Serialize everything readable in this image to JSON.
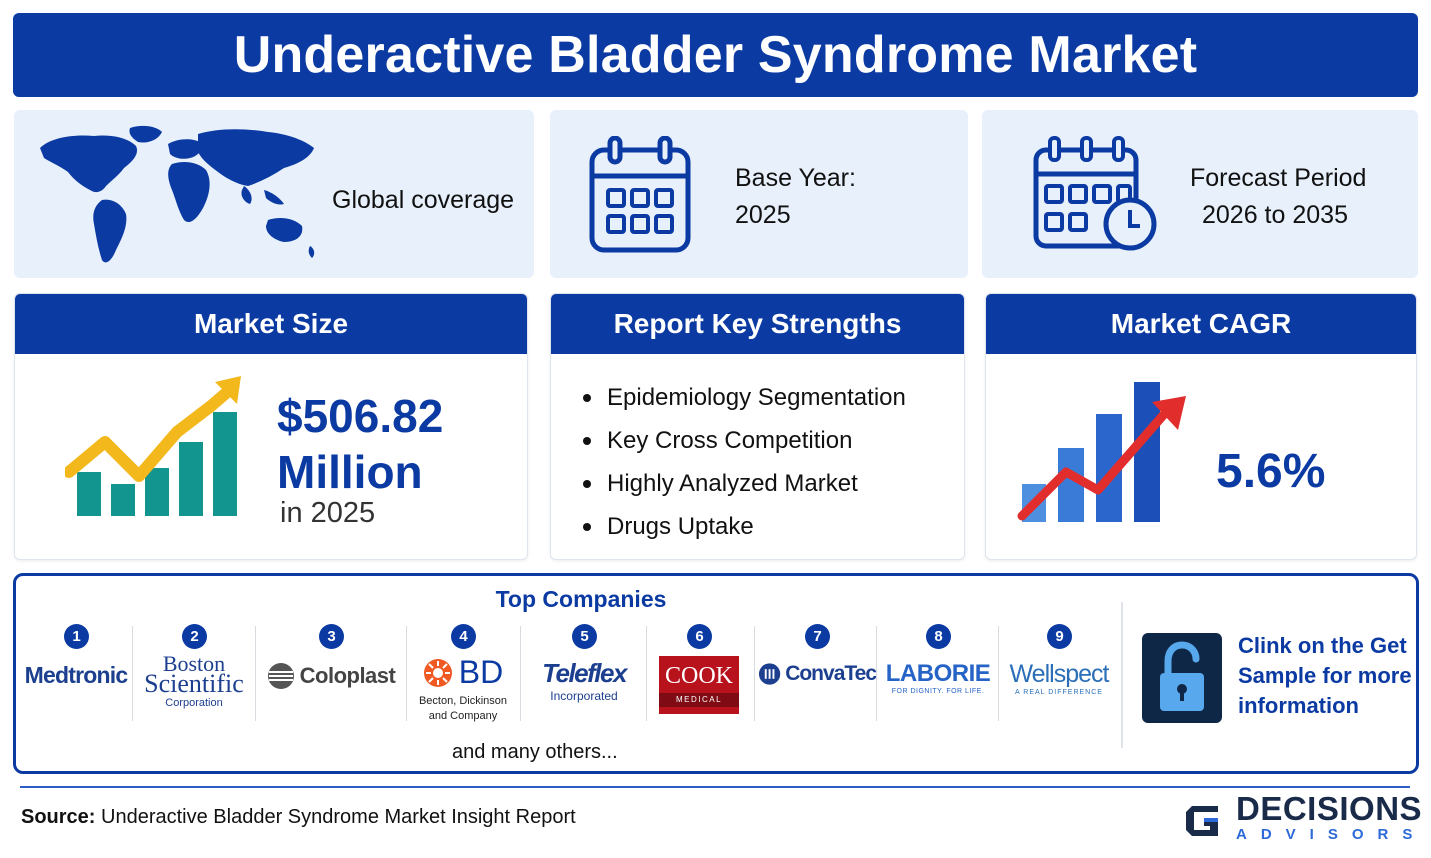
{
  "title": "Underactive Bladder Syndrome Market",
  "coverage": {
    "label": "Global coverage"
  },
  "base_year": {
    "label": "Base Year:",
    "value": "2025"
  },
  "forecast": {
    "label": "Forecast Period",
    "value": "2026 to 2035"
  },
  "market_size": {
    "heading": "Market Size",
    "value_line1": "$506.82",
    "value_line2": "Million",
    "sub": "in 2025"
  },
  "strengths": {
    "heading": "Report Key Strengths",
    "items": [
      "Epidemiology Segmentation",
      "Key Cross Competition",
      "Highly Analyzed Market",
      "Drugs Uptake"
    ]
  },
  "cagr": {
    "heading": "Market CAGR",
    "value": "5.6%"
  },
  "companies": {
    "heading": "Top Companies",
    "list": [
      {
        "num": "1",
        "name": "Medtronic"
      },
      {
        "num": "2",
        "name": "Boston",
        "name2": "Scientific",
        "sub": "Corporation"
      },
      {
        "num": "3",
        "name": "Coloplast"
      },
      {
        "num": "4",
        "name": "BD",
        "sub": "Becton, Dickinson",
        "sub2": "and Company"
      },
      {
        "num": "5",
        "name": "Teleflex",
        "sub": "Incorporated"
      },
      {
        "num": "6",
        "name": "COOK",
        "sub": "MEDICAL"
      },
      {
        "num": "7",
        "name": "ConvaTec"
      },
      {
        "num": "8",
        "name": "LABORIE",
        "sub": "FOR DIGNITY. FOR LIFE."
      },
      {
        "num": "9",
        "name": "Wellspect",
        "sub": "A REAL DIFFERENCE"
      }
    ],
    "others": "and many others...",
    "cta_line1": "Clink on the Get",
    "cta_line2": "Sample for more",
    "cta_line3": "information"
  },
  "source": {
    "label": "Source:",
    "text": "Underactive Bladder Syndrome Market Insight Report"
  },
  "brand": {
    "name": "DECISIONS",
    "tagline": "ADVISORS"
  },
  "colors": {
    "primary": "#0b3aa3",
    "light_bg": "#e7f0fb",
    "teal": "#12948f",
    "gold": "#f3b81c",
    "red": "#e22d2d"
  }
}
